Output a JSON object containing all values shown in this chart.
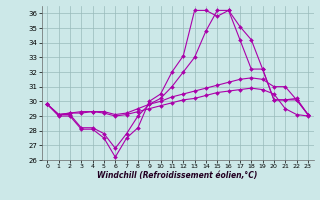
{
  "xlabel": "Windchill (Refroidissement éolien,°C)",
  "xlim": [
    -0.5,
    23.5
  ],
  "ylim": [
    26,
    36.5
  ],
  "yticks": [
    26,
    27,
    28,
    29,
    30,
    31,
    32,
    33,
    34,
    35,
    36
  ],
  "xticks": [
    0,
    1,
    2,
    3,
    4,
    5,
    6,
    7,
    8,
    9,
    10,
    11,
    12,
    13,
    14,
    15,
    16,
    17,
    18,
    19,
    20,
    21,
    22,
    23
  ],
  "bg_color": "#cce8e8",
  "line_color": "#aa00aa",
  "grid_color": "#99bbbb",
  "series": [
    {
      "x": [
        0,
        1,
        2,
        3,
        4,
        5,
        6,
        7,
        8,
        9,
        10,
        11,
        12,
        13,
        14,
        15,
        16,
        17,
        18,
        19,
        20,
        21,
        22,
        23
      ],
      "y": [
        29.8,
        29.0,
        29.0,
        28.1,
        28.1,
        27.5,
        26.2,
        27.5,
        28.2,
        30.0,
        30.5,
        32.0,
        33.1,
        36.2,
        36.2,
        35.8,
        36.2,
        35.1,
        34.2,
        32.2,
        30.1,
        30.1,
        30.2,
        29.1
      ]
    },
    {
      "x": [
        0,
        1,
        2,
        3,
        4,
        5,
        6,
        7,
        8,
        9,
        10,
        11,
        12,
        13,
        14,
        15,
        16,
        17,
        18,
        19,
        20,
        21,
        22,
        23
      ],
      "y": [
        29.8,
        29.1,
        29.1,
        28.2,
        28.2,
        27.8,
        26.8,
        27.8,
        29.0,
        29.8,
        30.2,
        31.0,
        32.0,
        33.0,
        34.8,
        36.2,
        36.2,
        34.2,
        32.2,
        32.2,
        30.1,
        30.1,
        30.1,
        29.1
      ]
    },
    {
      "x": [
        0,
        1,
        2,
        3,
        4,
        5,
        6,
        7,
        8,
        9,
        10,
        11,
        12,
        13,
        14,
        15,
        16,
        17,
        18,
        19,
        20,
        21,
        22,
        23
      ],
      "y": [
        29.8,
        29.1,
        29.2,
        29.3,
        29.3,
        29.3,
        29.1,
        29.2,
        29.5,
        29.8,
        30.0,
        30.3,
        30.5,
        30.7,
        30.9,
        31.1,
        31.3,
        31.5,
        31.6,
        31.5,
        31.0,
        31.0,
        30.1,
        29.1
      ]
    },
    {
      "x": [
        0,
        1,
        2,
        3,
        4,
        5,
        6,
        7,
        8,
        9,
        10,
        11,
        12,
        13,
        14,
        15,
        16,
        17,
        18,
        19,
        20,
        21,
        22,
        23
      ],
      "y": [
        29.8,
        29.1,
        29.2,
        29.2,
        29.3,
        29.2,
        29.0,
        29.1,
        29.3,
        29.5,
        29.7,
        29.9,
        30.1,
        30.2,
        30.4,
        30.6,
        30.7,
        30.8,
        30.9,
        30.8,
        30.5,
        29.5,
        29.1,
        29.0
      ]
    }
  ]
}
